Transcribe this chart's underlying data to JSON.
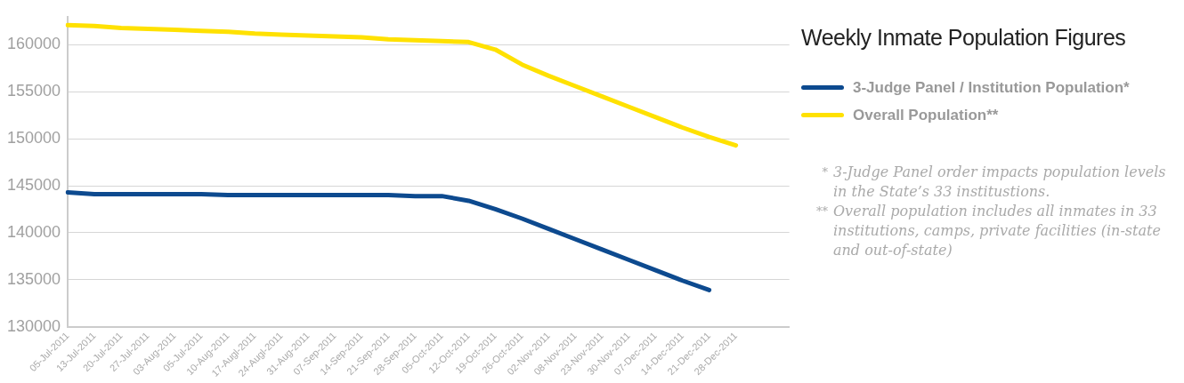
{
  "chart_data": {
    "type": "line",
    "title": "Weekly Inmate Population Figures",
    "categories": [
      "05-Jul-2011",
      "13-Jul-2011",
      "20-Jul-2011",
      "27-Jul-2011",
      "03-Aug-2011",
      "05-Jul-2011",
      "10-Aug-2011",
      "17-Augl-2011",
      "24-Augl-2011",
      "31-Aug-2011",
      "07-Sep-2011",
      "14-Sep-2011",
      "21-Sep-2011",
      "28-Sep-2011",
      "05-Oct-2011",
      "12-Oct-2011",
      "19-Oct-2011",
      "26-Oct-2011",
      "02-Nov-2011",
      "08-Nov-2011",
      "23-Nov-2011",
      "30-Nov-2011",
      "07-Dec-2011",
      "14-Dec-2011",
      "21-Dec-2011",
      "28-Dec-2011",
      null,
      null
    ],
    "series": [
      {
        "name": "3-Judge Panel / Institution Population*",
        "color": "#0d4a8f",
        "values": [
          144300,
          144100,
          144100,
          144100,
          144100,
          144100,
          144000,
          144000,
          144000,
          144000,
          144000,
          144000,
          144000,
          143900,
          143900,
          143400,
          142500,
          141500,
          140400,
          139300,
          138200,
          137100,
          136000,
          134900,
          133900,
          null,
          null,
          null
        ]
      },
      {
        "name": "Overall Population**",
        "color": "#ffe100",
        "values": [
          162100,
          162000,
          161800,
          161700,
          161600,
          161500,
          161400,
          161200,
          161100,
          161000,
          160900,
          160800,
          160600,
          160500,
          160400,
          160300,
          159500,
          157900,
          156700,
          155600,
          154500,
          153400,
          152300,
          151200,
          150200,
          149300,
          null,
          null
        ]
      }
    ],
    "ylim": [
      130000,
      163000
    ],
    "yticks": [
      130000,
      135000,
      140000,
      145000,
      150000,
      155000,
      160000
    ],
    "grid": "y",
    "legend": "right",
    "marker": "none",
    "line_style": "solid",
    "annotations": [
      "* 3-Judge Panel order impacts population levels in the State’s 33 institustions.",
      "** Overall population includes all inmates in 33 institutions, camps, private facilities (in-state and out-of-state)"
    ]
  }
}
